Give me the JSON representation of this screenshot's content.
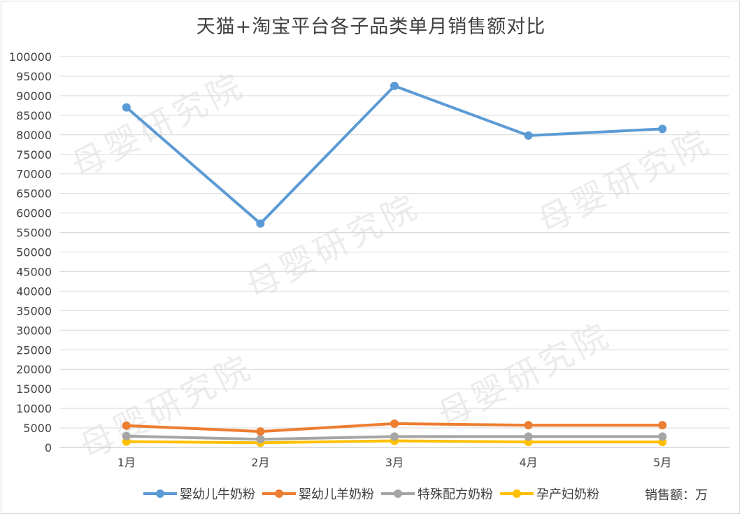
{
  "chart_data": {
    "type": "line",
    "title": "天猫+淘宝平台各子品类单月销售额对比",
    "categories": [
      "1月",
      "2月",
      "3月",
      "4月",
      "5月"
    ],
    "y_ticks": [
      "0",
      "5000",
      "10000",
      "15000",
      "20000",
      "25000",
      "30000",
      "35000",
      "40000",
      "45000",
      "50000",
      "55000",
      "60000",
      "65000",
      "70000",
      "75000",
      "80000",
      "85000",
      "90000",
      "95000",
      "100000"
    ],
    "ylim": [
      0,
      100000
    ],
    "grid": true,
    "legend_position": "bottom",
    "unit_label": "销售额：万",
    "series": [
      {
        "name": "婴幼儿牛奶粉",
        "color": "#5b9bd5",
        "values": [
          87000,
          57300,
          92500,
          79800,
          81500
        ]
      },
      {
        "name": "婴幼儿羊奶粉",
        "color": "#ed7d31",
        "values": [
          5600,
          4100,
          6100,
          5700,
          5700
        ]
      },
      {
        "name": "特殊配方奶粉",
        "color": "#a5a5a5",
        "values": [
          2900,
          2100,
          2800,
          2800,
          2800
        ]
      },
      {
        "name": "孕产妇奶粉",
        "color": "#ffc000",
        "values": [
          1500,
          1200,
          1700,
          1400,
          1400
        ]
      }
    ]
  },
  "watermark": "母婴研究院"
}
